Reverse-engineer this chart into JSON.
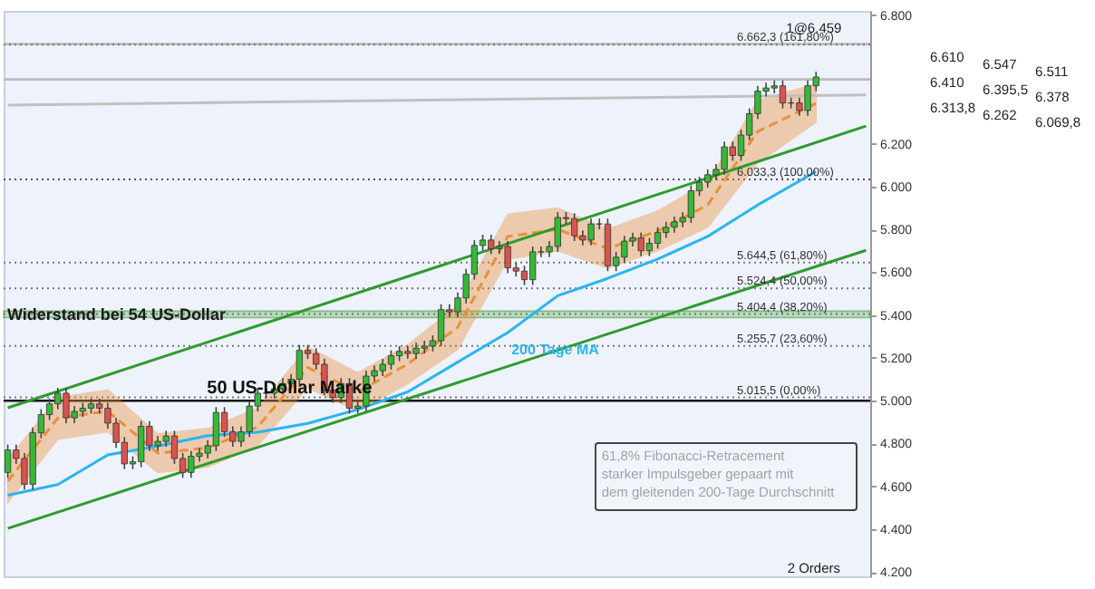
{
  "chart_data": {
    "type": "candlestick",
    "categories": [
      null,
      null,
      null,
      null,
      null,
      null,
      null,
      null,
      null,
      null,
      null,
      null,
      null,
      null,
      null,
      null,
      null,
      null,
      null,
      null,
      null,
      null,
      null,
      null,
      null,
      null,
      null,
      null,
      null,
      null,
      null,
      null,
      null,
      null,
      null,
      null,
      null,
      null,
      null,
      null,
      null,
      null,
      null,
      null,
      null,
      null,
      null,
      null,
      null,
      null,
      null,
      null,
      null,
      null,
      null,
      null,
      null,
      null,
      null,
      null,
      null,
      null,
      null,
      null,
      null,
      null,
      null,
      null,
      null,
      null,
      null,
      null,
      null,
      null,
      null,
      null,
      null,
      null,
      null,
      null,
      null,
      null,
      null,
      null,
      null,
      null,
      null,
      null,
      null,
      null,
      null,
      null,
      null,
      null,
      null,
      null,
      null,
      null,
      null,
      null,
      null,
      null,
      null,
      null
    ],
    "ohlc": [
      [
        4665,
        4795,
        4640,
        4770
      ],
      [
        4770,
        4795,
        4705,
        4730
      ],
      [
        4730,
        4755,
        4585,
        4610
      ],
      [
        4610,
        4875,
        4585,
        4850
      ],
      [
        4850,
        4960,
        4825,
        4935
      ],
      [
        4935,
        5010,
        4910,
        4985
      ],
      [
        4985,
        5060,
        4960,
        5035
      ],
      [
        5035,
        5060,
        4895,
        4920
      ],
      [
        4920,
        4975,
        4895,
        4950
      ],
      [
        4950,
        4990,
        4925,
        4965
      ],
      [
        4965,
        5010,
        4940,
        4985
      ],
      [
        4985,
        5010,
        4940,
        4965
      ],
      [
        4965,
        4990,
        4870,
        4895
      ],
      [
        4895,
        4920,
        4780,
        4805
      ],
      [
        4805,
        4830,
        4680,
        4705
      ],
      [
        4705,
        4740,
        4680,
        4715
      ],
      [
        4715,
        4905,
        4690,
        4880
      ],
      [
        4880,
        4905,
        4765,
        4790
      ],
      [
        4790,
        4835,
        4765,
        4810
      ],
      [
        4810,
        4860,
        4785,
        4835
      ],
      [
        4835,
        4860,
        4705,
        4730
      ],
      [
        4730,
        4755,
        4640,
        4665
      ],
      [
        4665,
        4765,
        4640,
        4740
      ],
      [
        4740,
        4780,
        4715,
        4755
      ],
      [
        4755,
        4815,
        4730,
        4790
      ],
      [
        4790,
        4970,
        4765,
        4945
      ],
      [
        4945,
        4970,
        4830,
        4855
      ],
      [
        4855,
        4880,
        4785,
        4810
      ],
      [
        4810,
        4880,
        4785,
        4855
      ],
      [
        4855,
        5000,
        4830,
        4975
      ],
      [
        4975,
        5060,
        4950,
        5035
      ],
      [
        5035,
        5060,
        5010,
        5035
      ],
      [
        5035,
        5080,
        5010,
        5055
      ],
      [
        5055,
        5105,
        5030,
        5080
      ],
      [
        5080,
        5125,
        5055,
        5100
      ],
      [
        5100,
        5260,
        5075,
        5235
      ],
      [
        5235,
        5260,
        5195,
        5220
      ],
      [
        5220,
        5245,
        5145,
        5170
      ],
      [
        5170,
        5195,
        5025,
        5050
      ],
      [
        5050,
        5075,
        4990,
        5015
      ],
      [
        5015,
        5105,
        4990,
        5080
      ],
      [
        5080,
        5105,
        4940,
        4965
      ],
      [
        4965,
        5000,
        4940,
        4975
      ],
      [
        4975,
        5140,
        4950,
        5115
      ],
      [
        5115,
        5165,
        5090,
        5140
      ],
      [
        5140,
        5195,
        5115,
        5170
      ],
      [
        5170,
        5235,
        5145,
        5210
      ],
      [
        5210,
        5255,
        5185,
        5230
      ],
      [
        5230,
        5255,
        5195,
        5220
      ],
      [
        5220,
        5270,
        5195,
        5245
      ],
      [
        5245,
        5280,
        5220,
        5255
      ],
      [
        5255,
        5305,
        5230,
        5280
      ],
      [
        5280,
        5450,
        5255,
        5425
      ],
      [
        5425,
        5450,
        5390,
        5415
      ],
      [
        5415,
        5505,
        5390,
        5480
      ],
      [
        5480,
        5615,
        5455,
        5590
      ],
      [
        5590,
        5750,
        5565,
        5725
      ],
      [
        5725,
        5775,
        5700,
        5750
      ],
      [
        5750,
        5775,
        5685,
        5710
      ],
      [
        5710,
        5745,
        5685,
        5720
      ],
      [
        5720,
        5745,
        5595,
        5620
      ],
      [
        5620,
        5645,
        5580,
        5605
      ],
      [
        5605,
        5630,
        5540,
        5565
      ],
      [
        5565,
        5720,
        5540,
        5695
      ],
      [
        5695,
        5720,
        5670,
        5695
      ],
      [
        5695,
        5745,
        5670,
        5720
      ],
      [
        5720,
        5880,
        5695,
        5855
      ],
      [
        5855,
        5880,
        5825,
        5850
      ],
      [
        5850,
        5875,
        5745,
        5770
      ],
      [
        5770,
        5795,
        5725,
        5750
      ],
      [
        5750,
        5850,
        5725,
        5825
      ],
      [
        5825,
        5850,
        5800,
        5825
      ],
      [
        5825,
        5850,
        5605,
        5630
      ],
      [
        5630,
        5695,
        5605,
        5670
      ],
      [
        5670,
        5770,
        5645,
        5745
      ],
      [
        5745,
        5785,
        5720,
        5760
      ],
      [
        5760,
        5785,
        5675,
        5700
      ],
      [
        5700,
        5760,
        5675,
        5735
      ],
      [
        5735,
        5810,
        5710,
        5785
      ],
      [
        5785,
        5835,
        5760,
        5810
      ],
      [
        5810,
        5860,
        5785,
        5835
      ],
      [
        5835,
        5880,
        5810,
        5855
      ],
      [
        5855,
        6005,
        5830,
        5980
      ],
      [
        5980,
        6045,
        5955,
        6020
      ],
      [
        6020,
        6080,
        5995,
        6055
      ],
      [
        6055,
        6105,
        6030,
        6080
      ],
      [
        6080,
        6210,
        6055,
        6185
      ],
      [
        6185,
        6210,
        6120,
        6145
      ],
      [
        6145,
        6265,
        6120,
        6240
      ],
      [
        6240,
        6365,
        6215,
        6340
      ],
      [
        6340,
        6470,
        6315,
        6445
      ],
      [
        6445,
        6485,
        6420,
        6460
      ],
      [
        6460,
        6495,
        6435,
        6470
      ],
      [
        6470,
        6495,
        6365,
        6390
      ],
      [
        6390,
        6415,
        6365,
        6390
      ],
      [
        6390,
        6415,
        6330,
        6355
      ],
      [
        6355,
        6495,
        6330,
        6470
      ],
      [
        6470,
        6536,
        6445,
        6511
      ],
      null,
      null,
      null,
      null,
      null,
      null
    ],
    "ylim": [
      4180,
      6820
    ],
    "yticks": [
      {
        "value": 4200,
        "label": "4.200"
      },
      {
        "value": 4400,
        "label": "4.400"
      },
      {
        "value": 4600,
        "label": "4.600"
      },
      {
        "value": 4800,
        "label": "4.800"
      },
      {
        "value": 5000,
        "label": "5.000"
      },
      {
        "value": 5200,
        "label": "5.200"
      },
      {
        "value": 5400,
        "label": "5.400"
      },
      {
        "value": 5600,
        "label": "5.600"
      },
      {
        "value": 5800,
        "label": "5.800"
      },
      {
        "value": 6000,
        "label": "6.000"
      },
      {
        "value": 6200,
        "label": "6.200"
      },
      {
        "value": 6800,
        "label": "6.800"
      }
    ],
    "tick_labels": "y",
    "series": [
      {
        "type": "line",
        "color": "#e8903a",
        "line_style": "dashed",
        "values": [
          4625,
          null,
          null,
          null,
          null,
          null,
          4918,
          null,
          null,
          null,
          null,
          null,
          4951,
          null,
          null,
          null,
          null,
          null,
          4755,
          null,
          null,
          null,
          null,
          null,
          4780,
          null,
          null,
          null,
          null,
          null,
          4878,
          null,
          null,
          null,
          null,
          null,
          5155,
          null,
          null,
          null,
          null,
          null,
          5041,
          null,
          null,
          null,
          null,
          null,
          5171,
          null,
          null,
          null,
          null,
          null,
          5343,
          null,
          null,
          null,
          null,
          null,
          5767,
          null,
          null,
          null,
          null,
          null,
          5800,
          null,
          null,
          null,
          null,
          null,
          5710,
          null,
          null,
          null,
          null,
          null,
          5792,
          null,
          null,
          null,
          null,
          null,
          5914,
          null,
          null,
          null,
          null,
          null,
          6257,
          null,
          null,
          null,
          null,
          null,
          null,
          6388,
          null,
          null,
          null,
          null,
          null,
          null
        ],
        "lower": [
          4525,
          null,
          null,
          null,
          null,
          null,
          4820,
          null,
          null,
          null,
          null,
          null,
          4855,
          null,
          null,
          null,
          null,
          null,
          4665,
          null,
          null,
          null,
          null,
          null,
          4690,
          null,
          null,
          null,
          null,
          null,
          4790,
          null,
          null,
          null,
          null,
          null,
          5060,
          null,
          null,
          null,
          null,
          null,
          4950,
          null,
          null,
          null,
          null,
          null,
          5080,
          null,
          null,
          null,
          null,
          null,
          5240,
          null,
          null,
          null,
          null,
          null,
          5660,
          null,
          null,
          null,
          null,
          null,
          5700,
          null,
          null,
          null,
          null,
          null,
          5620,
          null,
          null,
          null,
          null,
          null,
          5700,
          null,
          null,
          null,
          null,
          null,
          5810,
          null,
          null,
          null,
          null,
          null,
          6110,
          null,
          null,
          null,
          null,
          null,
          null,
          6300,
          null,
          null,
          null,
          null,
          null,
          null
        ],
        "upper": [
          4725,
          null,
          null,
          null,
          null,
          null,
          5015,
          null,
          null,
          null,
          null,
          null,
          5050,
          null,
          null,
          null,
          null,
          null,
          4845,
          null,
          null,
          null,
          null,
          null,
          4870,
          null,
          null,
          null,
          null,
          null,
          4965,
          null,
          null,
          null,
          null,
          null,
          5250,
          null,
          null,
          null,
          null,
          null,
          5130,
          null,
          null,
          null,
          null,
          null,
          5260,
          null,
          null,
          null,
          null,
          null,
          5445,
          null,
          null,
          null,
          null,
          null,
          5870,
          null,
          null,
          null,
          null,
          null,
          5900,
          null,
          null,
          null,
          null,
          null,
          5800,
          null,
          null,
          null,
          null,
          null,
          5885,
          null,
          null,
          null,
          null,
          null,
          6020,
          null,
          null,
          null,
          null,
          null,
          6400,
          null,
          null,
          null,
          null,
          null,
          null,
          6480,
          null,
          null,
          null,
          null,
          null,
          null
        ]
      },
      {
        "type": "line",
        "name": "200 Tage MA",
        "color": "#2bb5f0",
        "values": [
          4559,
          null,
          null,
          null,
          null,
          null,
          4608,
          null,
          null,
          null,
          null,
          null,
          4747,
          null,
          null,
          null,
          null,
          null,
          4788,
          null,
          null,
          null,
          null,
          null,
          4837,
          null,
          null,
          null,
          null,
          null,
          4853,
          null,
          null,
          null,
          null,
          null,
          4894,
          null,
          null,
          null,
          null,
          null,
          4959,
          null,
          null,
          null,
          null,
          null,
          5041,
          null,
          null,
          null,
          null,
          null,
          5180,
          null,
          null,
          null,
          null,
          null,
          5318,
          null,
          null,
          null,
          null,
          null,
          5490,
          null,
          null,
          null,
          null,
          null,
          5571,
          null,
          null,
          null,
          null,
          null,
          5661,
          null,
          null,
          null,
          null,
          null,
          5767,
          null,
          null,
          null,
          null,
          null,
          5914,
          null,
          null,
          null,
          null,
          null,
          null,
          6070,
          null,
          null,
          null,
          null,
          null,
          null
        ]
      },
      {
        "type": "line",
        "color": "#2e9b2e",
        "values": [
          4967,
          null,
          null,
          null,
          null,
          null,
          null,
          null,
          null,
          null,
          null,
          null,
          null,
          null,
          null,
          null,
          null,
          null,
          null,
          null,
          null,
          null,
          null,
          null,
          null,
          null,
          null,
          null,
          null,
          null,
          null,
          null,
          null,
          null,
          null,
          null,
          null,
          null,
          null,
          null,
          null,
          null,
          null,
          null,
          null,
          null,
          null,
          null,
          null,
          null,
          null,
          null,
          null,
          null,
          null,
          null,
          null,
          null,
          null,
          null,
          null,
          null,
          null,
          null,
          null,
          null,
          null,
          null,
          null,
          null,
          null,
          null,
          null,
          null,
          null,
          null,
          null,
          null,
          null,
          null,
          null,
          null,
          null,
          null,
          null,
          null,
          null,
          null,
          null,
          null,
          null,
          null,
          null,
          null,
          null,
          null,
          null,
          null,
          null,
          null,
          null,
          null,
          null,
          6282
        ]
      },
      {
        "type": "line",
        "color": "#2e9b2e",
        "values": [
          4404,
          null,
          null,
          null,
          null,
          null,
          null,
          null,
          null,
          null,
          null,
          null,
          null,
          null,
          null,
          null,
          null,
          null,
          null,
          null,
          null,
          null,
          null,
          null,
          null,
          null,
          null,
          null,
          null,
          null,
          null,
          null,
          null,
          null,
          null,
          null,
          null,
          null,
          null,
          null,
          null,
          null,
          null,
          null,
          null,
          null,
          null,
          null,
          null,
          null,
          null,
          null,
          null,
          null,
          null,
          null,
          null,
          null,
          null,
          null,
          null,
          null,
          null,
          null,
          null,
          null,
          null,
          null,
          null,
          null,
          null,
          null,
          null,
          null,
          null,
          null,
          null,
          null,
          null,
          null,
          null,
          null,
          null,
          null,
          null,
          null,
          null,
          null,
          null,
          null,
          null,
          null,
          null,
          null,
          null,
          null,
          null,
          null,
          null,
          null,
          null,
          null,
          null,
          5702
        ]
      },
      {
        "type": "line",
        "color": "#c0c0c0",
        "values": [
          6380,
          null,
          null,
          null,
          null,
          null,
          null,
          null,
          null,
          null,
          null,
          null,
          null,
          null,
          null,
          null,
          null,
          null,
          null,
          null,
          null,
          null,
          null,
          null,
          null,
          null,
          null,
          null,
          null,
          null,
          null,
          null,
          null,
          null,
          null,
          null,
          null,
          null,
          null,
          null,
          null,
          null,
          null,
          null,
          null,
          null,
          null,
          null,
          null,
          null,
          null,
          null,
          null,
          null,
          null,
          null,
          null,
          null,
          null,
          null,
          null,
          null,
          null,
          null,
          null,
          null,
          null,
          null,
          null,
          null,
          null,
          null,
          null,
          null,
          null,
          null,
          null,
          null,
          null,
          null,
          null,
          null,
          null,
          null,
          null,
          null,
          null,
          null,
          null,
          null,
          null,
          null,
          null,
          null,
          null,
          null,
          null,
          null,
          null,
          null,
          null,
          null,
          null,
          6428
        ]
      }
    ],
    "ref_lines": [
      {
        "axis": "y",
        "value": 6665,
        "color": "#bbbbbb",
        "line_style": "solid"
      },
      {
        "axis": "y",
        "value": 6500,
        "color": "#bbbbbb",
        "line_style": "solid"
      },
      {
        "axis": "y",
        "value": 5000,
        "label": "50 US-Dollar Marke",
        "color": "#111111",
        "line_style": "solid"
      },
      {
        "axis": "y",
        "value": 6662.3,
        "label": "6.662,3 (161,80%)",
        "color": "#777777",
        "line_style": "dotted"
      },
      {
        "axis": "y",
        "value": 6033.3,
        "label": "6.033,3 (100,00%)",
        "color": "#555555",
        "line_style": "dotted"
      },
      {
        "axis": "y",
        "value": 5644.5,
        "label": "5.644,5 (61,80%)",
        "color": "#777777",
        "line_style": "dotted"
      },
      {
        "axis": "y",
        "value": 5524.4,
        "label": "5.524,4 (50,00%)",
        "color": "#777777",
        "line_style": "dotted"
      },
      {
        "axis": "y",
        "value": 5404.4,
        "label": "5.404,4 (38,20%)",
        "color": "#777777",
        "line_style": "dotted"
      },
      {
        "axis": "y",
        "value": 5255.7,
        "label": "5.255,7 (23,60%)",
        "color": "#777777",
        "line_style": "dotted"
      },
      {
        "axis": "y",
        "value": 5015.5,
        "label": "5.015,5 (0,00%)",
        "color": "#777777",
        "line_style": "dotted"
      }
    ],
    "bands": [
      {
        "axis": "y",
        "from": 5388,
        "to": 5418,
        "label": "Widerstand bei 54 US-Dollar",
        "color": "#9fd39f"
      }
    ],
    "annotations": [
      "6.610",
      "6.547",
      "6.511",
      "6.410",
      "6.395,5",
      "6.378",
      "6.313,8",
      "6.262",
      "6.069,8",
      "1@6.459",
      "61,8% Fibonacci-Retracement\nstarker Impulsgeber gepaart mit\ndem gleitenden 200-Tage Durchschnitt",
      "2 Orders"
    ]
  }
}
